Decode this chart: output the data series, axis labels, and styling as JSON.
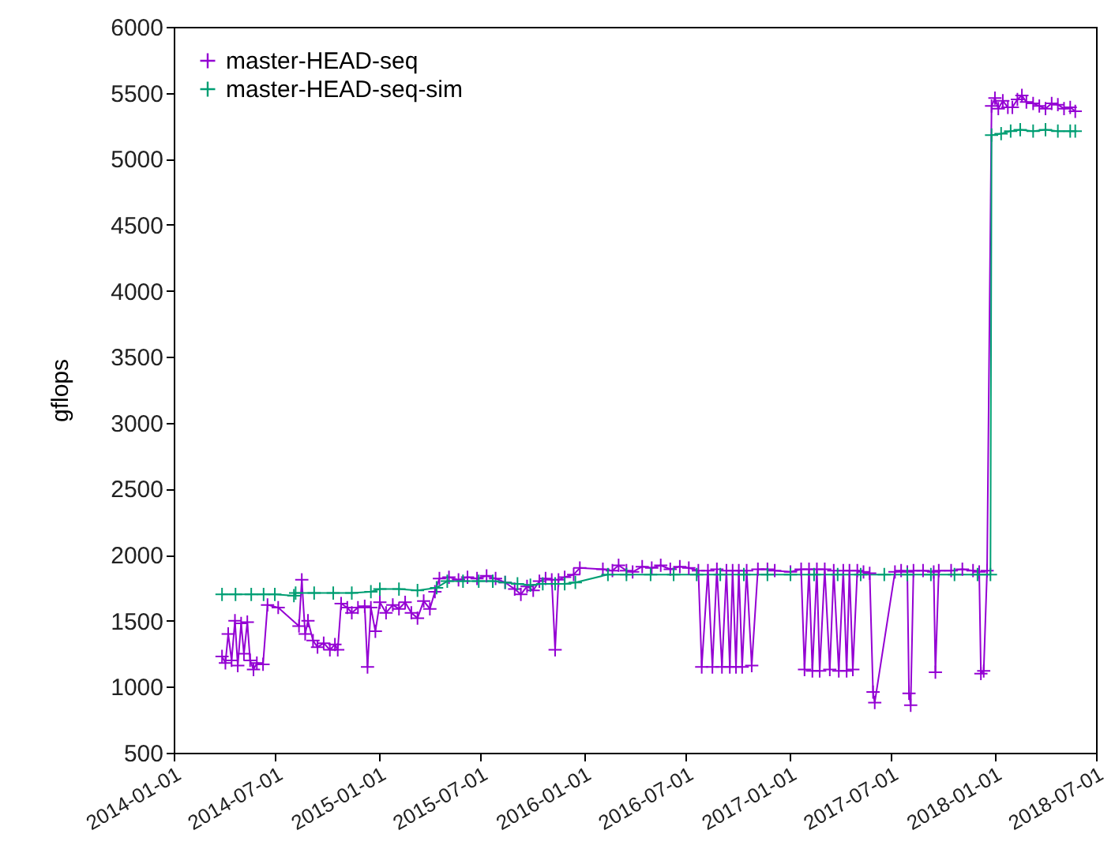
{
  "chart_data": {
    "type": "line",
    "ylabel": "gflops",
    "xlim": [
      "2014-01-01",
      "2018-07-01"
    ],
    "ylim": [
      500,
      6000
    ],
    "xticks": [
      "2014-01-01",
      "2014-07-01",
      "2015-01-01",
      "2015-07-01",
      "2016-01-01",
      "2016-07-01",
      "2017-01-01",
      "2017-07-01",
      "2018-01-01",
      "2018-07-01"
    ],
    "yticks": [
      500,
      1000,
      1500,
      2000,
      2500,
      3000,
      3500,
      4000,
      4500,
      5000,
      5500,
      6000
    ],
    "grid": false,
    "legend": "top left",
    "marker": "cross",
    "series": [
      {
        "name": "master-HEAD-seq",
        "color": "#9400d3",
        "x": [
          "2014-03-28",
          "2014-04-03",
          "2014-04-08",
          "2014-04-14",
          "2014-04-20",
          "2014-04-25",
          "2014-05-01",
          "2014-05-06",
          "2014-05-12",
          "2014-05-17",
          "2014-05-23",
          "2014-05-29",
          "2014-06-09",
          "2014-06-17",
          "2014-07-06",
          "2014-08-12",
          "2014-08-17",
          "2014-08-23",
          "2014-08-28",
          "2014-09-06",
          "2014-09-14",
          "2014-09-25",
          "2014-10-06",
          "2014-10-15",
          "2014-10-20",
          "2014-10-26",
          "2014-11-06",
          "2014-11-14",
          "2014-11-25",
          "2014-12-07",
          "2014-12-12",
          "2014-12-18",
          "2014-12-26",
          "2015-01-03",
          "2015-01-14",
          "2015-01-26",
          "2015-02-06",
          "2015-02-17",
          "2015-02-28",
          "2015-03-11",
          "2015-03-22",
          "2015-04-02",
          "2015-04-11",
          "2015-04-19",
          "2015-05-06",
          "2015-05-23",
          "2015-06-08",
          "2015-06-25",
          "2015-07-12",
          "2015-07-28",
          "2015-08-14",
          "2015-08-31",
          "2015-09-11",
          "2015-09-22",
          "2015-10-03",
          "2015-10-14",
          "2015-10-25",
          "2015-11-05",
          "2015-11-11",
          "2015-11-17",
          "2015-11-28",
          "2015-12-14",
          "2015-12-25",
          "2016-02-04",
          "2016-02-21",
          "2016-03-03",
          "2016-03-17",
          "2016-03-28",
          "2016-04-14",
          "2016-05-01",
          "2016-05-17",
          "2016-06-03",
          "2016-06-20",
          "2016-07-06",
          "2016-07-23",
          "2016-07-29",
          "2016-08-09",
          "2016-08-17",
          "2016-08-25",
          "2016-09-03",
          "2016-09-11",
          "2016-09-17",
          "2016-09-22",
          "2016-09-28",
          "2016-10-03",
          "2016-10-09",
          "2016-10-17",
          "2016-10-26",
          "2016-11-06",
          "2016-11-23",
          "2016-12-06",
          "2017-01-03",
          "2017-01-22",
          "2017-01-28",
          "2017-02-05",
          "2017-02-11",
          "2017-02-19",
          "2017-02-24",
          "2017-03-05",
          "2017-03-14",
          "2017-03-21",
          "2017-03-30",
          "2017-04-07",
          "2017-04-13",
          "2017-04-18",
          "2017-04-24",
          "2017-05-02",
          "2017-05-13",
          "2017-05-24",
          "2017-05-30",
          "2017-06-02",
          "2017-07-08",
          "2017-07-19",
          "2017-07-30",
          "2017-08-02",
          "2017-08-05",
          "2017-08-10",
          "2017-08-27",
          "2017-09-15",
          "2017-09-18",
          "2017-09-24",
          "2017-10-16",
          "2017-11-05",
          "2017-11-24",
          "2017-12-05",
          "2017-12-08",
          "2017-12-13",
          "2017-12-19",
          "2017-12-27",
          "2018-01-02",
          "2018-01-08",
          "2018-01-16",
          "2018-01-25",
          "2018-02-02",
          "2018-02-11",
          "2018-02-19",
          "2018-02-27",
          "2018-03-11",
          "2018-03-22",
          "2018-04-02",
          "2018-04-13",
          "2018-04-24",
          "2018-05-05",
          "2018-05-16",
          "2018-05-25"
        ],
        "values": [
          1230,
          1180,
          1400,
          1200,
          1500,
          1160,
          1480,
          1250,
          1490,
          1200,
          1130,
          1180,
          1170,
          1620,
          1600,
          1460,
          1810,
          1400,
          1500,
          1350,
          1300,
          1330,
          1280,
          1320,
          1280,
          1630,
          1600,
          1560,
          1600,
          1610,
          1150,
          1600,
          1420,
          1640,
          1560,
          1620,
          1590,
          1640,
          1560,
          1520,
          1650,
          1590,
          1720,
          1820,
          1830,
          1810,
          1830,
          1820,
          1840,
          1820,
          1790,
          1740,
          1700,
          1760,
          1730,
          1800,
          1820,
          1810,
          1280,
          1810,
          1830,
          1850,
          1900,
          1890,
          1880,
          1920,
          1880,
          1870,
          1910,
          1900,
          1920,
          1890,
          1910,
          1900,
          1880,
          1150,
          1880,
          1150,
          1890,
          1150,
          1880,
          1150,
          1880,
          1150,
          1880,
          1150,
          1880,
          1160,
          1890,
          1890,
          1880,
          1870,
          1890,
          1130,
          1890,
          1120,
          1890,
          1120,
          1890,
          1130,
          1880,
          1120,
          1880,
          1120,
          1880,
          1130,
          1880,
          1870,
          1860,
          960,
          880,
          1870,
          1880,
          1870,
          950,
          860,
          1880,
          1880,
          1870,
          1110,
          1880,
          1880,
          1890,
          1880,
          1870,
          1100,
          1120,
          1880,
          5400,
          5460,
          5380,
          5440,
          5390,
          5390,
          5450,
          5480,
          5430,
          5420,
          5400,
          5380,
          5420,
          5410,
          5380,
          5390,
          5360
        ]
      },
      {
        "name": "master-HEAD-seq-sim",
        "color": "#009e73",
        "x": [
          "2014-03-28",
          "2014-04-21",
          "2014-05-19",
          "2014-06-10",
          "2014-06-30",
          "2014-08-03",
          "2014-08-06",
          "2014-09-08",
          "2014-10-12",
          "2014-11-14",
          "2014-12-18",
          "2015-01-03",
          "2015-02-06",
          "2015-03-11",
          "2015-04-14",
          "2015-05-03",
          "2015-05-31",
          "2015-06-28",
          "2015-07-23",
          "2015-08-14",
          "2015-09-05",
          "2015-09-28",
          "2015-10-20",
          "2015-11-11",
          "2015-11-28",
          "2015-12-17",
          "2016-02-13",
          "2016-03-17",
          "2016-04-29",
          "2016-06-09",
          "2016-07-20",
          "2016-08-31",
          "2016-10-12",
          "2016-11-23",
          "2017-01-03",
          "2017-02-14",
          "2017-03-28",
          "2017-05-08",
          "2017-06-19",
          "2017-07-30",
          "2017-09-10",
          "2017-10-22",
          "2017-12-02",
          "2017-12-25",
          "2017-12-27",
          "2018-01-13",
          "2018-01-30",
          "2018-02-16",
          "2018-03-11",
          "2018-04-02",
          "2018-04-24",
          "2018-05-16",
          "2018-05-25"
        ],
        "values": [
          1700,
          1700,
          1700,
          1700,
          1700,
          1690,
          1710,
          1710,
          1710,
          1710,
          1720,
          1740,
          1740,
          1730,
          1750,
          1800,
          1800,
          1800,
          1800,
          1790,
          1780,
          1770,
          1780,
          1780,
          1780,
          1790,
          1850,
          1850,
          1850,
          1850,
          1850,
          1850,
          1850,
          1850,
          1850,
          1850,
          1850,
          1850,
          1850,
          1850,
          1850,
          1850,
          1850,
          1850,
          5180,
          5190,
          5210,
          5220,
          5210,
          5220,
          5210,
          5210,
          5210
        ]
      }
    ]
  }
}
